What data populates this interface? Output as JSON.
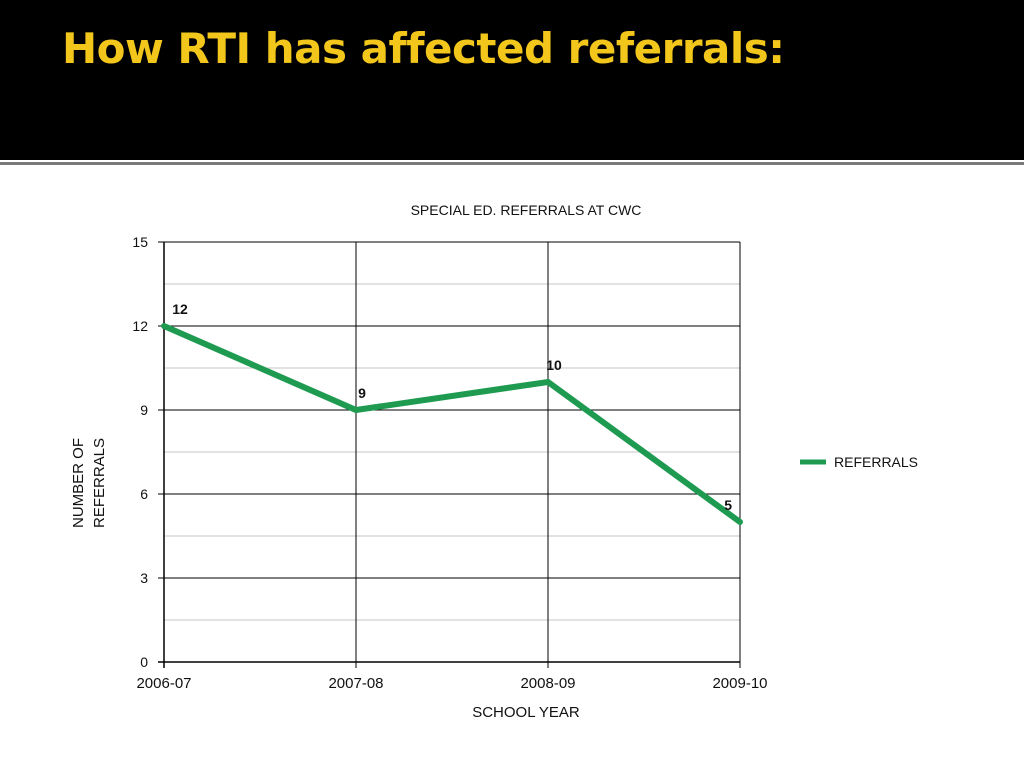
{
  "slide": {
    "title": "How RTI has affected referrals:"
  },
  "colors": {
    "title_bar": "#000000",
    "title_text": "#f2c61a",
    "series_line": "#1e9b50",
    "grid": "#000000"
  },
  "chart_data": {
    "type": "line",
    "title": "SPECIAL ED. REFERRALS AT CWC",
    "xlabel": "SCHOOL YEAR",
    "ylabel": "NUMBER OF REFERRALS",
    "ylabel_lines": [
      "NUMBER OF",
      "REFERRALS"
    ],
    "categories": [
      "2006-07",
      "2007-08",
      "2008-09",
      "2009-10"
    ],
    "ylim": [
      0,
      15
    ],
    "yticks": [
      "0",
      "3",
      "6",
      "9",
      "12",
      "15"
    ],
    "grid": true,
    "legend_position": "right",
    "series": [
      {
        "name": "REFERRALS",
        "values": [
          12,
          9,
          10,
          5
        ],
        "labels": [
          "12",
          "9",
          "10",
          "5"
        ]
      }
    ]
  }
}
